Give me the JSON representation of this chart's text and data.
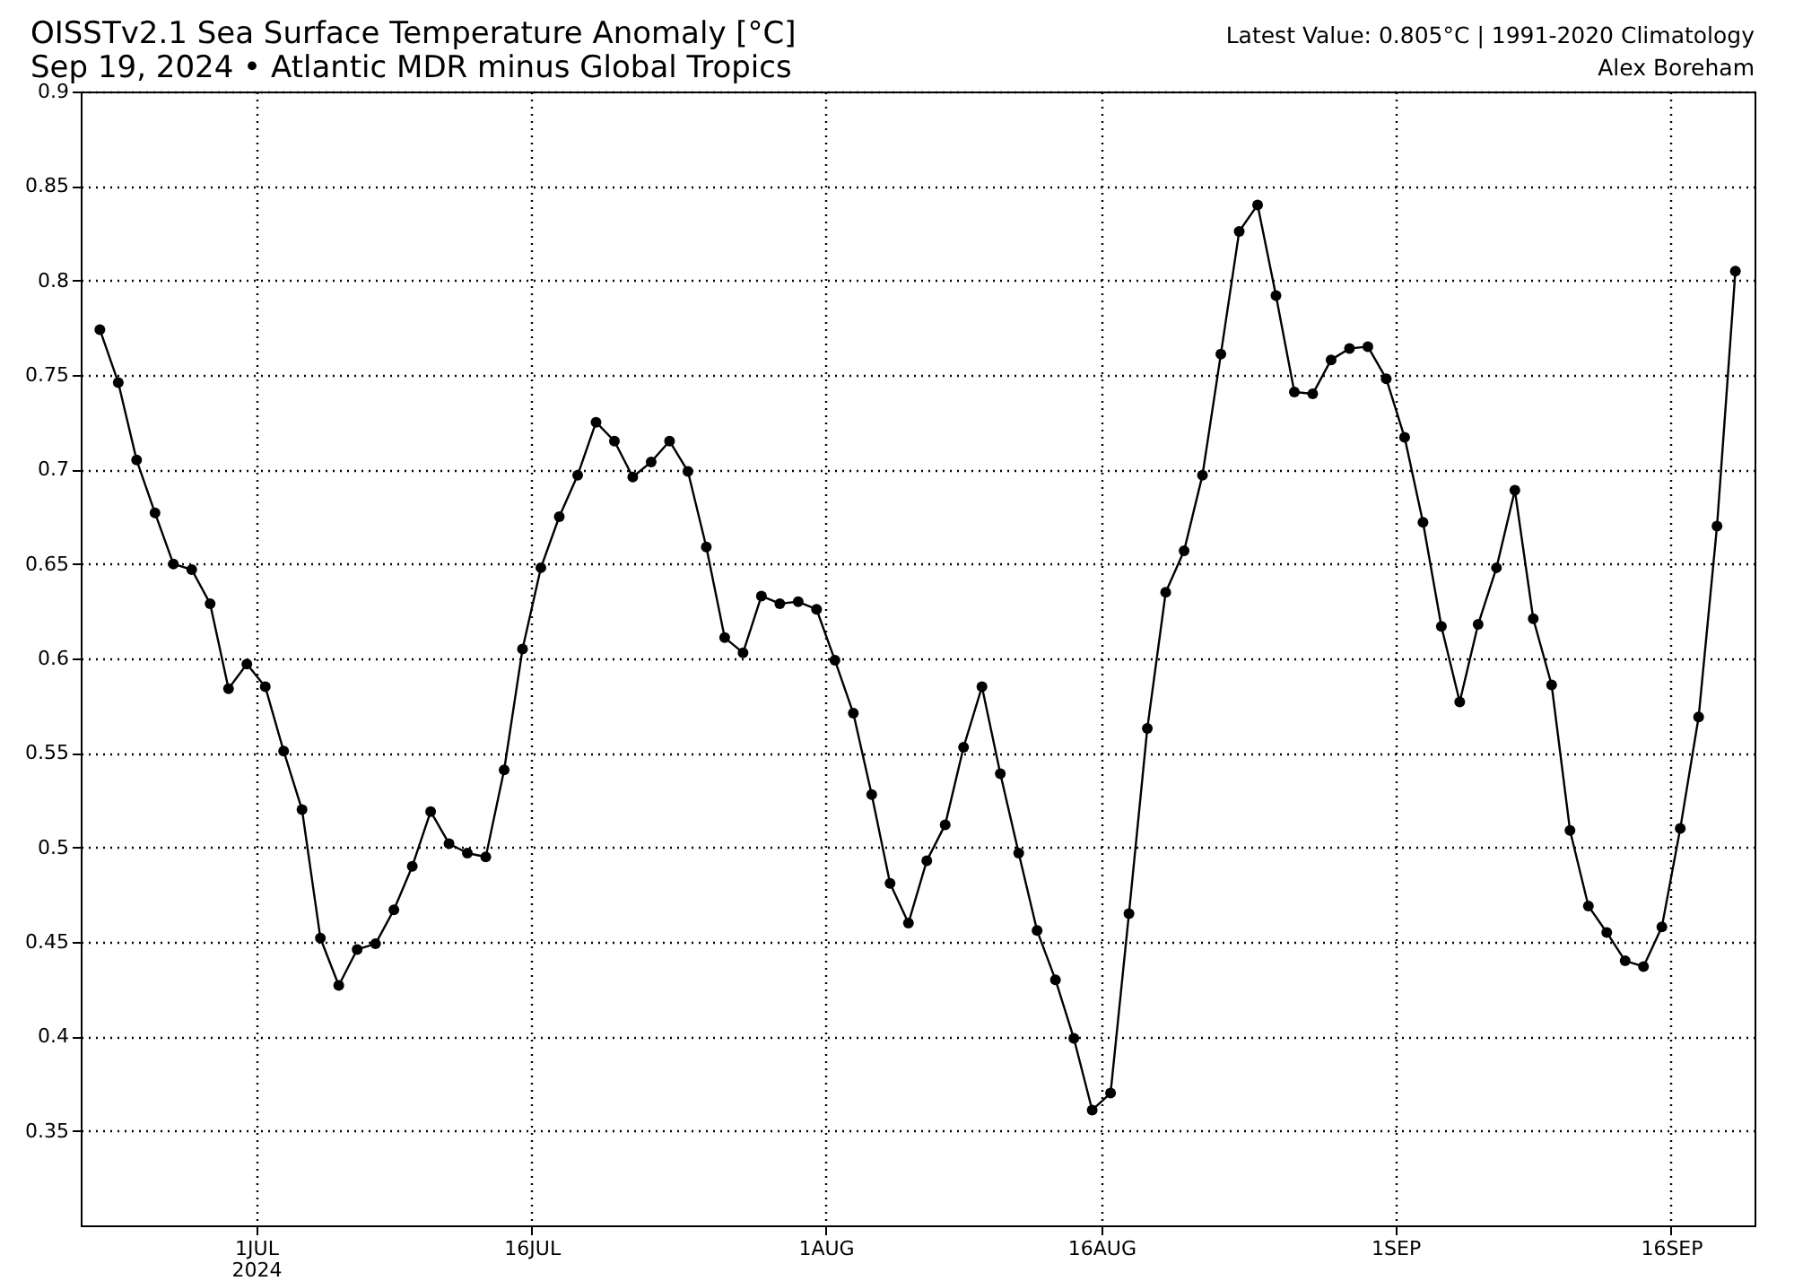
{
  "chart_data": {
    "type": "line",
    "title": "OISSTv2.1 Sea Surface Temperature Anomaly [°C]",
    "subtitle": "Sep 19, 2024 • Atlantic MDR minus Global Tropics",
    "annotations": [
      "Latest Value: 0.805°C | 1991-2020 Climatology",
      "Alex Boreham"
    ],
    "x": [
      "2024-06-22T12:00",
      "2024-06-23T12:00",
      "2024-06-24T12:00",
      "2024-06-25T12:00",
      "2024-06-26T12:00",
      "2024-06-27T12:00",
      "2024-06-28T12:00",
      "2024-06-29T12:00",
      "2024-06-30T12:00",
      "2024-07-01T12:00",
      "2024-07-02T12:00",
      "2024-07-03T12:00",
      "2024-07-04T12:00",
      "2024-07-05T12:00",
      "2024-07-06T12:00",
      "2024-07-07T12:00",
      "2024-07-08T12:00",
      "2024-07-09T12:00",
      "2024-07-10T12:00",
      "2024-07-11T12:00",
      "2024-07-12T12:00",
      "2024-07-13T12:00",
      "2024-07-14T12:00",
      "2024-07-15T12:00",
      "2024-07-16T12:00",
      "2024-07-17T12:00",
      "2024-07-18T12:00",
      "2024-07-19T12:00",
      "2024-07-20T12:00",
      "2024-07-21T12:00",
      "2024-07-22T12:00",
      "2024-07-23T12:00",
      "2024-07-24T12:00",
      "2024-07-25T12:00",
      "2024-07-26T12:00",
      "2024-07-27T12:00",
      "2024-07-28T12:00",
      "2024-07-29T12:00",
      "2024-07-30T12:00",
      "2024-07-31T12:00",
      "2024-08-01T12:00",
      "2024-08-02T12:00",
      "2024-08-03T12:00",
      "2024-08-04T12:00",
      "2024-08-05T12:00",
      "2024-08-06T12:00",
      "2024-08-07T12:00",
      "2024-08-08T12:00",
      "2024-08-09T12:00",
      "2024-08-10T12:00",
      "2024-08-11T12:00",
      "2024-08-12T12:00",
      "2024-08-13T12:00",
      "2024-08-14T12:00",
      "2024-08-15T12:00",
      "2024-08-16T12:00",
      "2024-08-17T12:00",
      "2024-08-18T12:00",
      "2024-08-19T12:00",
      "2024-08-20T12:00",
      "2024-08-21T12:00",
      "2024-08-22T12:00",
      "2024-08-23T12:00",
      "2024-08-24T12:00",
      "2024-08-25T12:00",
      "2024-08-26T12:00",
      "2024-08-27T12:00",
      "2024-08-28T12:00",
      "2024-08-29T12:00",
      "2024-08-30T12:00",
      "2024-08-31T12:00",
      "2024-09-01T12:00",
      "2024-09-02T12:00",
      "2024-09-03T12:00",
      "2024-09-04T12:00",
      "2024-09-05T12:00",
      "2024-09-06T12:00",
      "2024-09-07T12:00",
      "2024-09-08T12:00",
      "2024-09-09T12:00",
      "2024-09-10T12:00",
      "2024-09-11T12:00",
      "2024-09-12T12:00",
      "2024-09-13T12:00",
      "2024-09-14T12:00",
      "2024-09-15T12:00",
      "2024-09-16T12:00",
      "2024-09-17T12:00",
      "2024-09-18T12:00",
      "2024-09-19T12:00"
    ],
    "series": [
      {
        "color": "#000000",
        "values": [
          0.774,
          0.746,
          0.705,
          0.677,
          0.65,
          0.647,
          0.629,
          0.584,
          0.597,
          0.585,
          0.551,
          0.52,
          0.452,
          0.427,
          0.446,
          0.449,
          0.467,
          0.49,
          0.519,
          0.502,
          0.497,
          0.495,
          0.541,
          0.605,
          0.648,
          0.675,
          0.697,
          0.725,
          0.715,
          0.696,
          0.704,
          0.715,
          0.699,
          0.659,
          0.611,
          0.603,
          0.633,
          0.629,
          0.63,
          0.626,
          0.599,
          0.571,
          0.528,
          0.481,
          0.46,
          0.493,
          0.512,
          0.553,
          0.585,
          0.539,
          0.497,
          0.456,
          0.43,
          0.399,
          0.361,
          0.37,
          0.465,
          0.563,
          0.635,
          0.657,
          0.697,
          0.761,
          0.826,
          0.84,
          0.792,
          0.741,
          0.74,
          0.758,
          0.764,
          0.765,
          0.748,
          0.717,
          0.672,
          0.617,
          0.577,
          0.618,
          0.648,
          0.689,
          0.621,
          0.586,
          0.509,
          0.469,
          0.455,
          0.44,
          0.437,
          0.458,
          0.51,
          0.569,
          0.67,
          0.805
        ]
      }
    ],
    "xlim": [
      "2024-06-21T11:00",
      "2024-09-20T13:00"
    ],
    "xticks": [
      {
        "value": "2024-07-01",
        "label": "1JUL\n2024"
      },
      {
        "value": "2024-07-16",
        "label": "16JUL"
      },
      {
        "value": "2024-08-01",
        "label": "1AUG"
      },
      {
        "value": "2024-08-16",
        "label": "16AUG"
      },
      {
        "value": "2024-09-01",
        "label": "1SEP"
      },
      {
        "value": "2024-09-16",
        "label": "16SEP"
      }
    ],
    "ylim": [
      0.3,
      0.9
    ],
    "yticks": [
      0.35,
      0.4,
      0.45,
      0.5,
      0.55,
      0.6,
      0.65,
      0.7,
      0.75,
      0.8,
      0.85,
      0.9
    ],
    "grid": true,
    "marker": "circle",
    "line_style": "solid"
  }
}
